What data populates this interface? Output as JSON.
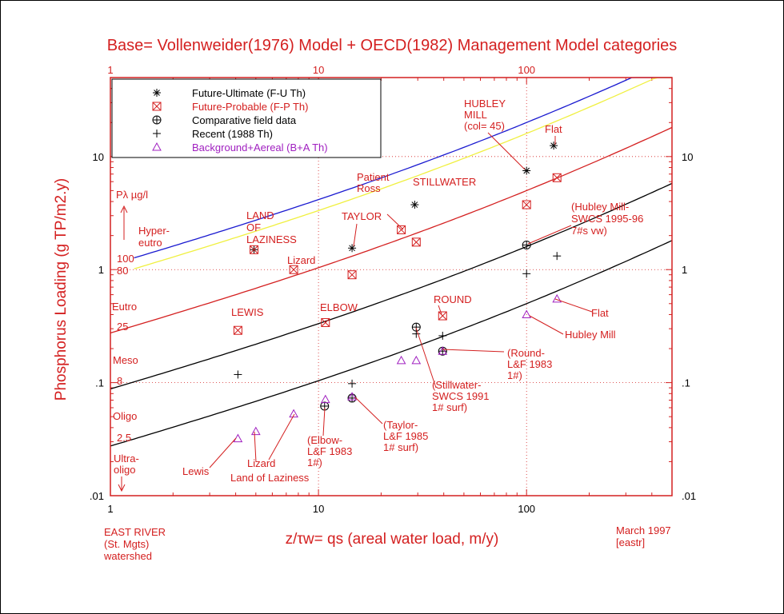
{
  "chart_data": {
    "type": "scatter",
    "scale": "log-log",
    "title": "Base= Vollenweider(1976) Model + OECD(1982) Management Model categories",
    "xlabel": "z/τw= qs (areal water load, m/y)",
    "ylabel": "Phosphorus Loading (g TP/m2.y)",
    "xlim": [
      1,
      500
    ],
    "ylim": [
      0.01,
      50
    ],
    "x_ticks": [
      "1",
      "10",
      "100"
    ],
    "y_ticks_left": [
      "10",
      "1",
      ".1",
      ".01"
    ],
    "y_ticks_right": [
      "10",
      "1",
      ".1",
      ".01"
    ],
    "top_ticks": [
      "1",
      "10",
      "100"
    ],
    "footer_left": [
      "EAST RIVER",
      "(St. Mgts)",
      "watershed"
    ],
    "footer_right": [
      "March 1997",
      "[eastr]"
    ],
    "colors": {
      "axis": "#d42020",
      "text": "#d42020",
      "grid": "#d42020",
      "legend_fp": "#d42020",
      "legend_ba": "#a020c0",
      "curve_top": "#1a1ad0",
      "curve_yellow": "#f0f040",
      "curve_red": "#d42020",
      "curve_black": "#000000"
    },
    "legend": [
      {
        "marker": "asterisk",
        "label": "Future-Ultimate (F-U Th)",
        "color": "#000000"
      },
      {
        "marker": "boxx",
        "label": "Future-Probable (F-P Th)",
        "color": "#d42020"
      },
      {
        "marker": "circleplus",
        "label": "Comparative field data",
        "color": "#000000"
      },
      {
        "marker": "plus",
        "label": "Recent (1988 Th)",
        "color": "#000000"
      },
      {
        "marker": "triangle",
        "label": "Background+Aereal (B+A Th)",
        "color": "#a020c0"
      }
    ],
    "curves": [
      {
        "name": "100 µg/l",
        "color": "#1a1ad0",
        "p": 100
      },
      {
        "name": "80 µg/l",
        "color": "#f0f040",
        "p": 80
      },
      {
        "name": "25 µg/l",
        "color": "#d42020",
        "p": 25
      },
      {
        "name": "8 µg/l",
        "color": "#000000",
        "p": 8
      },
      {
        "name": "2.5 µg/l",
        "color": "#000000",
        "p": 2.5
      }
    ],
    "series": [
      {
        "name": "Future-Ultimate",
        "marker": "asterisk",
        "color": "#000000",
        "points": [
          [
            4.9,
            1.5
          ],
          [
            14.5,
            1.55
          ],
          [
            29,
            3.75
          ],
          [
            100,
            7.5
          ],
          [
            135,
            12.5
          ]
        ]
      },
      {
        "name": "Future-Probable",
        "marker": "boxx",
        "color": "#d42020",
        "points": [
          [
            4.9,
            1.5
          ],
          [
            7.6,
            1.0
          ],
          [
            4.1,
            0.29
          ],
          [
            10.8,
            0.34
          ],
          [
            14.5,
            0.9
          ],
          [
            25,
            2.25
          ],
          [
            29.5,
            1.75
          ],
          [
            39.5,
            0.39
          ],
          [
            100,
            3.75
          ],
          [
            140,
            6.5
          ]
        ]
      },
      {
        "name": "Comparative field data",
        "marker": "circleplus",
        "color": "#000000",
        "points": [
          [
            29.5,
            0.31
          ],
          [
            39.5,
            0.19
          ],
          [
            100,
            1.65
          ],
          [
            10.7,
            0.062
          ],
          [
            14.5,
            0.073
          ]
        ]
      },
      {
        "name": "Recent",
        "marker": "plus",
        "color": "#000000",
        "points": [
          [
            4.1,
            0.118
          ],
          [
            14.5,
            0.098
          ],
          [
            29.5,
            0.27
          ],
          [
            39.5,
            0.26
          ],
          [
            100,
            0.92
          ],
          [
            140,
            1.32
          ]
        ]
      },
      {
        "name": "Background+Aereal",
        "marker": "triangle",
        "color": "#a020c0",
        "points": [
          [
            4.1,
            0.032
          ],
          [
            5.0,
            0.037
          ],
          [
            7.6,
            0.053
          ],
          [
            10.8,
            0.071
          ],
          [
            14.5,
            0.075
          ],
          [
            25,
            0.157
          ],
          [
            29.5,
            0.157
          ],
          [
            39.5,
            0.19
          ],
          [
            100,
            0.4
          ],
          [
            140,
            0.55
          ]
        ]
      }
    ],
    "annotations": {
      "pl_label": "Pλ µg/l",
      "hyper": [
        "Hyper-",
        "eutro"
      ],
      "eutro": "Eutro",
      "meso": "Meso",
      "oligo": "Oligo",
      "ultra": [
        "Ultra-",
        "oligo"
      ],
      "lvl_100": "100",
      "lvl_80": "80",
      "lvl_25": "25",
      "lvl_8": "8",
      "lvl_25b": "2.5",
      "hubley": [
        "HUBLEY",
        "MILL",
        "(col= 45)"
      ],
      "flat_top": "Flat",
      "patient": [
        "Patient",
        "Ross"
      ],
      "stillwater": "STILLWATER",
      "taylor": "TAYLOR",
      "land": [
        "LAND",
        "OF",
        "LAZINESS"
      ],
      "lizard": "Lizard",
      "lewis": "LEWIS",
      "elbow": "ELBOW",
      "round": "ROUND",
      "hubley_swcs": [
        "(Hubley Mill-",
        "SWCS 1995-96",
        "7#s vw)"
      ],
      "flat_r": "Flat",
      "hubley_mill": "Hubley Mill",
      "round_lf": [
        "(Round-",
        "L&F 1983",
        "1#)"
      ],
      "stillwater_swcs": [
        "(Stillwater-",
        "SWCS 1991",
        "1# surf)"
      ],
      "taylor_lf": [
        "(Taylor-",
        "L&F 1985",
        "1# surf)"
      ],
      "elbow_lf": [
        "(Elbow-",
        "L&F 1983",
        "1#)"
      ],
      "lizard_b": "Lizard",
      "land_b": "Land of Laziness",
      "lewis_b": "Lewis"
    }
  }
}
